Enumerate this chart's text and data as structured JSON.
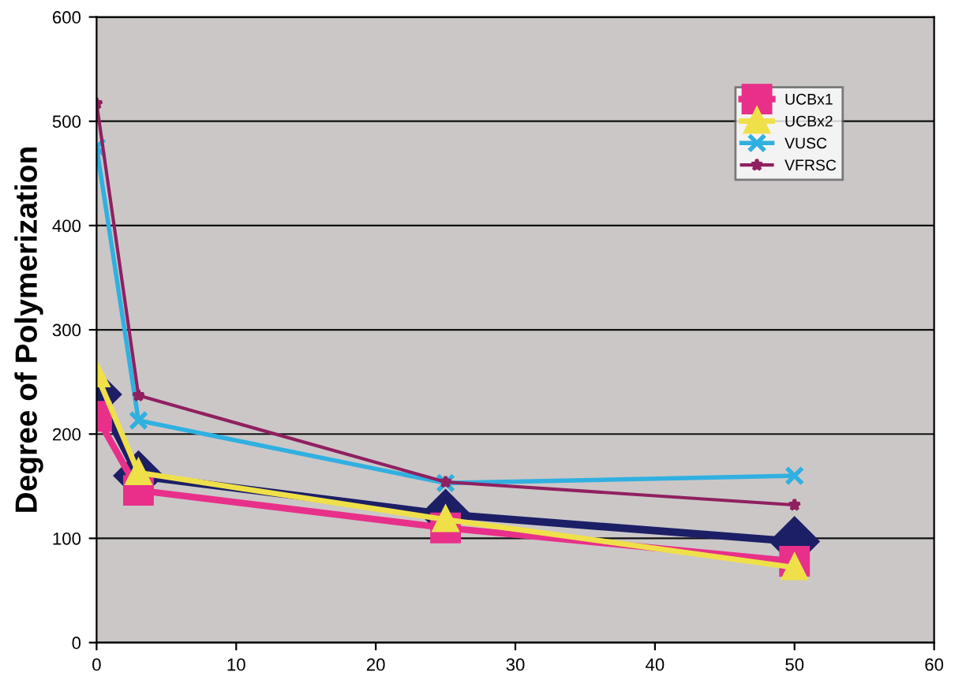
{
  "chart_data": {
    "type": "line",
    "ylabel": "Degree of Polymerization",
    "x": [
      0,
      3,
      25,
      50
    ],
    "series": [
      {
        "color": "#1c1f66",
        "marker": "diamond",
        "values": [
          238,
          160,
          123,
          97
        ]
      },
      {
        "name": "UCBx1",
        "color": "#e8308a",
        "marker": "square",
        "values": [
          217,
          146,
          110,
          78
        ]
      },
      {
        "name": "UCBx2",
        "color": "#efe04a",
        "marker": "triangle",
        "values": [
          257,
          163,
          118,
          72
        ]
      },
      {
        "name": "VUSC",
        "color": "#30b0e0",
        "marker": "cross",
        "values": [
          475,
          213,
          153,
          160
        ]
      },
      {
        "name": "VFRSC",
        "color": "#902060",
        "marker": "star",
        "values": [
          517,
          237,
          154,
          132
        ]
      }
    ],
    "xlim": [
      0,
      60
    ],
    "xticks": [
      0,
      10,
      20,
      30,
      40,
      50,
      60
    ],
    "ylim": [
      0,
      600
    ],
    "yticks": [
      0,
      100,
      200,
      300,
      400,
      500,
      600
    ],
    "grid": "y",
    "legend": "top right",
    "line_style": "solid"
  }
}
